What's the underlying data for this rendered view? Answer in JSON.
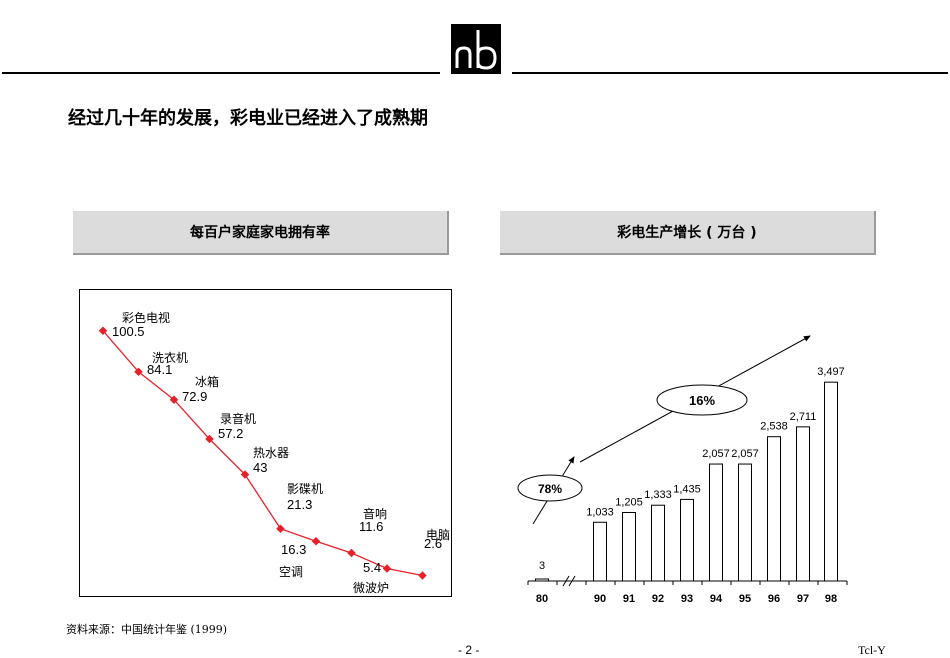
{
  "title": "经过几十年的发展，彩电业已经进入了成熟期",
  "left_panel": {
    "header": "每百户家庭家电拥有率",
    "items": [
      {
        "name": "彩色电视",
        "value": "100.5"
      },
      {
        "name": "洗衣机",
        "value": "84.1"
      },
      {
        "name": "冰箱",
        "value": "72.9"
      },
      {
        "name": "录音机",
        "value": "57.2"
      },
      {
        "name": "热水器",
        "value": "43"
      },
      {
        "name": "影碟机",
        "value": "21.3"
      },
      {
        "name": "空调",
        "value": "16.3"
      },
      {
        "name": "音响",
        "value": "11.6"
      },
      {
        "name": "微波炉",
        "value": "5.4"
      },
      {
        "name": "电脑",
        "value": "2.6"
      }
    ]
  },
  "right_panel": {
    "header": "彩电生产增长 ( 万台 )"
  },
  "chart_data": [
    {
      "type": "line",
      "title": "每百户家庭家电拥有率",
      "categories": [
        "彩色电视",
        "洗衣机",
        "冰箱",
        "录音机",
        "热水器",
        "影碟机",
        "空调",
        "音响",
        "微波炉",
        "电脑"
      ],
      "values": [
        100.5,
        84.1,
        72.9,
        57.2,
        43,
        21.3,
        16.3,
        11.6,
        5.4,
        2.6
      ],
      "color": "#e8202a"
    },
    {
      "type": "bar",
      "title": "彩电生产增长 ( 万台 )",
      "categories": [
        "80",
        "90",
        "91",
        "92",
        "93",
        "94",
        "95",
        "96",
        "97",
        "98"
      ],
      "values": [
        3,
        1033,
        1205,
        1333,
        1435,
        2057,
        2057,
        2538,
        2711,
        3497
      ],
      "value_labels": [
        "3",
        "1,033",
        "1,205",
        "1,333",
        "1,435",
        "2,057",
        "2,057",
        "2,538",
        "2,711",
        "3,497"
      ],
      "annotations": [
        "78%",
        "16%"
      ],
      "ylim": [
        0,
        3500
      ]
    }
  ],
  "footer": {
    "source": "资料来源：中国统计年鉴 (1999)",
    "page": "- 2 -",
    "right": "Tcl-Y"
  }
}
